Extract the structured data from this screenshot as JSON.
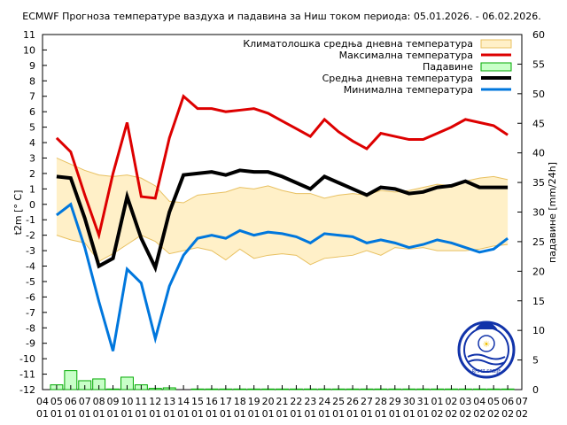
{
  "chart_data": {
    "type": "line",
    "title": "ECMWF Прогноза температуре ваздуха и падавина за Ниш током периода: 05.01.2026. - 06.02.2026.",
    "ylabel": "t2m [° C]",
    "y2label": "падавине [mm/24h]",
    "ylim": [
      -12,
      11
    ],
    "y2lim": [
      0,
      60
    ],
    "y_ticks": [
      "11",
      "10",
      "9",
      "8",
      "7",
      "6",
      "5",
      "4",
      "3",
      "2",
      "1",
      "0",
      "-1",
      "-2",
      "-3",
      "-4",
      "-5",
      "-6",
      "-7",
      "-8",
      "-9",
      "-10",
      "-11",
      "-12"
    ],
    "y2_ticks": [
      "60",
      "55",
      "50",
      "45",
      "40",
      "35",
      "30",
      "25",
      "20",
      "15",
      "10",
      "5",
      "0"
    ],
    "x_ticks_day": [
      "04",
      "05",
      "06",
      "07",
      "08",
      "09",
      "10",
      "11",
      "12",
      "13",
      "14",
      "15",
      "16",
      "17",
      "18",
      "19",
      "20",
      "21",
      "22",
      "23",
      "24",
      "25",
      "26",
      "27",
      "28",
      "29",
      "30",
      "31",
      "01",
      "02",
      "03",
      "04",
      "05",
      "06",
      "07"
    ],
    "x_ticks_month": [
      "01",
      "01",
      "01",
      "01",
      "01",
      "01",
      "01",
      "01",
      "01",
      "01",
      "01",
      "01",
      "01",
      "01",
      "01",
      "01",
      "01",
      "01",
      "01",
      "01",
      "01",
      "01",
      "01",
      "01",
      "01",
      "01",
      "01",
      "01",
      "02",
      "02",
      "02",
      "02",
      "02",
      "02",
      "02"
    ],
    "x_start_index": 1,
    "series": [
      {
        "name": "Максимална температура",
        "color": "#dd0000",
        "values": [
          4.3,
          3.4,
          0.6,
          -2.0,
          2.0,
          5.3,
          0.5,
          0.4,
          4.3,
          7.0,
          6.2,
          6.2,
          6.0,
          6.1,
          6.2,
          5.9,
          5.4,
          4.9,
          4.4,
          5.5,
          4.7,
          4.1,
          3.6,
          4.6,
          4.4,
          4.2,
          4.2,
          4.6,
          5.0,
          5.5,
          5.3,
          5.1,
          4.5
        ]
      },
      {
        "name": "Средња дневна температура",
        "color": "#000000",
        "values": [
          1.8,
          1.7,
          -0.9,
          -4.0,
          -3.5,
          0.5,
          -2.2,
          -4.1,
          -0.5,
          1.9,
          2.0,
          2.1,
          1.9,
          2.2,
          2.1,
          2.1,
          1.8,
          1.4,
          1.0,
          1.8,
          1.4,
          1.0,
          0.6,
          1.1,
          1.0,
          0.7,
          0.8,
          1.1,
          1.2,
          1.5,
          1.1,
          1.1,
          1.1
        ]
      },
      {
        "name": "Минимална температура",
        "color": "#0077dd",
        "values": [
          -0.7,
          0.0,
          -2.8,
          -6.3,
          -9.5,
          -4.2,
          -5.1,
          -8.7,
          -5.3,
          -3.3,
          -2.2,
          -2.0,
          -2.2,
          -1.7,
          -2.0,
          -1.8,
          -1.9,
          -2.1,
          -2.5,
          -1.9,
          -2.0,
          -2.1,
          -2.5,
          -2.3,
          -2.5,
          -2.8,
          -2.6,
          -2.3,
          -2.5,
          -2.8,
          -3.1,
          -2.9,
          -2.2
        ]
      },
      {
        "name": "Климатолошка средња дневна температура",
        "type": "band",
        "fill": "#fff0c8",
        "stroke": "#e8c060",
        "upper": [
          3.0,
          2.6,
          2.2,
          1.9,
          1.8,
          1.9,
          1.7,
          1.2,
          0.2,
          0.1,
          0.6,
          0.7,
          0.8,
          1.1,
          1.0,
          1.2,
          0.9,
          0.7,
          0.7,
          0.4,
          0.6,
          0.7,
          0.6,
          0.9,
          0.8,
          0.9,
          1.1,
          1.3,
          1.2,
          1.5,
          1.7,
          1.8,
          1.6
        ],
        "lower": [
          -2.0,
          -2.3,
          -2.5,
          -3.7,
          -3.2,
          -2.6,
          -2.0,
          -2.4,
          -3.2,
          -3.0,
          -2.8,
          -3.0,
          -3.6,
          -2.9,
          -3.5,
          -3.3,
          -3.2,
          -3.3,
          -3.9,
          -3.5,
          -3.4,
          -3.3,
          -3.0,
          -3.3,
          -2.8,
          -2.9,
          -2.8,
          -3.0,
          -3.0,
          -3.0,
          -2.9,
          -2.7,
          -2.6
        ]
      }
    ],
    "precipitation": {
      "name": "Падавине",
      "color": "#c8ffc8",
      "stroke": "#00aa00",
      "values": [
        0.8,
        3.2,
        1.5,
        1.8,
        0.1,
        2.1,
        0.8,
        0.2,
        0.3,
        0.0,
        0.1,
        0.1,
        0.1,
        0.1,
        0.1,
        0.1,
        0.1,
        0.1,
        0.1,
        0.1,
        0.1,
        0.1,
        0.1,
        0.1,
        0.1,
        0.1,
        0.1,
        0.1,
        0.1,
        0.1,
        0.1,
        0.1,
        0.1
      ]
    },
    "legend_placement": "top-right",
    "grid": false
  },
  "logo": {
    "text": "RHMZ SRBIJE",
    "color": "#1133aa"
  }
}
